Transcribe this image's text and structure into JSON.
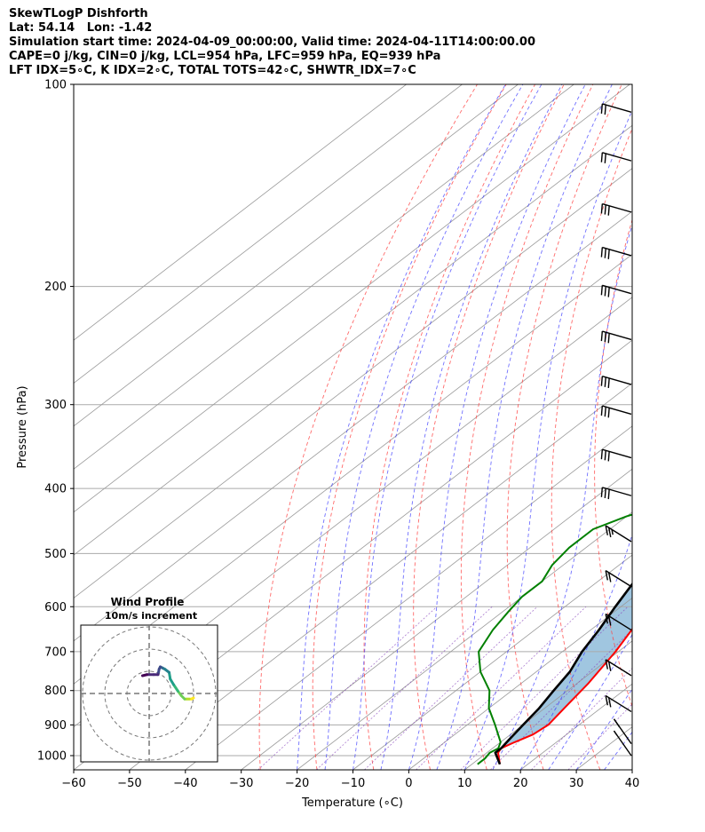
{
  "header": {
    "title_lines": [
      "SkewTLogP Dishforth",
      "Lat: 54.14   Lon: -1.42",
      "Simulation start time: 2024-04-09_00:00:00, Valid time: 2024-04-11T14:00:00.00",
      "CAPE=0 j/kg, CIN=0 j/kg, LCL=954 hPa, LFC=959 hPa, EQ=939 hPa",
      "LFT IDX=5∘C, K IDX=2∘C, TOTAL TOTS=42∘C, SHWTR_IDX=7∘C"
    ]
  },
  "chart_data": {
    "type": "line",
    "subtype": "skew-t log-p",
    "xlabel": "Temperature (∘C)",
    "ylabel": "Pressure (hPa)",
    "xlim": [
      -60,
      40
    ],
    "ylim": [
      1050,
      100
    ],
    "y_scale": "log",
    "grid": true,
    "x_ticks": [
      -60,
      -50,
      -40,
      -30,
      -20,
      -10,
      0,
      10,
      20,
      30,
      40
    ],
    "y_ticks": [
      100,
      200,
      300,
      400,
      500,
      600,
      700,
      800,
      900,
      1000
    ],
    "x_tick_labels": [
      "−60",
      "−50",
      "−40",
      "−30",
      "−20",
      "−10",
      "0",
      "10",
      "20",
      "30",
      "40"
    ],
    "y_tick_labels": [
      "100",
      "200",
      "300",
      "400",
      "500",
      "600",
      "700",
      "800",
      "900",
      "1000"
    ],
    "colors": {
      "temperature": "#ff0000",
      "dewpoint": "#008000",
      "parcel": "#000000",
      "shade": "#a0c6e0",
      "dry_adiabat": "#ff4444",
      "moist_adiabat": "#3333ff",
      "mixing_ratio": "#8844bb",
      "isotherm": "#999999"
    },
    "series": [
      {
        "key": "temperature",
        "points": [
          [
            15,
            1030
          ],
          [
            12,
            990
          ],
          [
            11.5,
            975
          ],
          [
            12.5,
            955
          ],
          [
            14,
            930
          ],
          [
            14.5,
            900
          ],
          [
            13.5,
            850
          ],
          [
            12,
            780
          ],
          [
            9.5,
            700
          ],
          [
            6,
            620
          ],
          [
            3,
            560
          ],
          [
            0.5,
            500
          ],
          [
            -1,
            460
          ],
          [
            -1.5,
            420
          ],
          [
            -2,
            400
          ],
          [
            -3,
            370
          ],
          [
            -5,
            340
          ],
          [
            -7.5,
            310
          ],
          [
            -10,
            285
          ],
          [
            -12.5,
            262
          ],
          [
            -15,
            247
          ],
          [
            -16.5,
            233
          ],
          [
            -17.5,
            220
          ],
          [
            -18.5,
            207
          ],
          [
            -19.5,
            197
          ],
          [
            -21,
            184
          ],
          [
            -22,
            173
          ],
          [
            -22,
            162
          ],
          [
            -22.5,
            152
          ],
          [
            -21,
            143
          ],
          [
            -19,
            134
          ],
          [
            -17.5,
            127
          ],
          [
            -18,
            121
          ],
          [
            -19,
            114
          ],
          [
            -20,
            109
          ],
          [
            -21,
            103
          ],
          [
            -21,
            100
          ]
        ]
      },
      {
        "key": "dewpoint",
        "points": [
          [
            11,
            1030
          ],
          [
            11,
            1010
          ],
          [
            10.5,
            990
          ],
          [
            11,
            975
          ],
          [
            10,
            955
          ],
          [
            5,
            900
          ],
          [
            0,
            850
          ],
          [
            -4,
            800
          ],
          [
            -10,
            750
          ],
          [
            -15,
            700
          ],
          [
            -17.5,
            650
          ],
          [
            -19,
            610
          ],
          [
            -20,
            580
          ],
          [
            -20,
            550
          ],
          [
            -22,
            520
          ],
          [
            -23,
            490
          ],
          [
            -23,
            460
          ],
          [
            -20,
            440
          ],
          [
            -15,
            420
          ],
          [
            -11,
            400
          ],
          [
            -12,
            380
          ],
          [
            -16,
            360
          ],
          [
            -23,
            340
          ],
          [
            -23,
            320
          ],
          [
            -22,
            300
          ],
          [
            -22,
            280
          ],
          [
            -23,
            260
          ],
          [
            -26,
            245
          ],
          [
            -27,
            230
          ],
          [
            -27,
            215
          ],
          [
            -27.5,
            200
          ],
          [
            -27.5,
            188
          ],
          [
            -28,
            178
          ],
          [
            -31,
            168
          ],
          [
            -35,
            160
          ],
          [
            -37,
            152
          ],
          [
            -37,
            145
          ],
          [
            -35,
            138
          ],
          [
            -33,
            131
          ],
          [
            -30,
            124
          ],
          [
            -27,
            116
          ],
          [
            -24,
            108
          ],
          [
            -21,
            100
          ]
        ]
      },
      {
        "key": "parcel",
        "points": [
          [
            15,
            1030
          ],
          [
            11.5,
            990
          ],
          [
            11.5,
            975
          ],
          [
            11,
            950
          ],
          [
            10,
            900
          ],
          [
            9,
            850
          ],
          [
            7.5,
            800
          ],
          [
            6,
            750
          ],
          [
            3.5,
            700
          ],
          [
            1.5,
            650
          ],
          [
            -1,
            600
          ],
          [
            -3.5,
            550
          ],
          [
            -6.5,
            500
          ],
          [
            -10,
            450
          ],
          [
            -14,
            400
          ],
          [
            -18.5,
            350
          ],
          [
            -24,
            300
          ],
          [
            -30.5,
            250
          ],
          [
            -38,
            200
          ],
          [
            -47,
            150
          ],
          [
            -55,
            115
          ],
          [
            -59,
            100
          ]
        ]
      }
    ],
    "wind_barbs": [
      {
        "pressure": 110,
        "speed_kt": 100
      },
      {
        "pressure": 130,
        "speed_kt": 100
      },
      {
        "pressure": 155,
        "speed_kt": 150
      },
      {
        "pressure": 180,
        "speed_kt": 150
      },
      {
        "pressure": 205,
        "speed_kt": 150
      },
      {
        "pressure": 240,
        "speed_kt": 150
      },
      {
        "pressure": 280,
        "speed_kt": 150
      },
      {
        "pressure": 310,
        "speed_kt": 150
      },
      {
        "pressure": 360,
        "speed_kt": 150
      },
      {
        "pressure": 410,
        "speed_kt": 150
      },
      {
        "pressure": 480,
        "speed_kt": 25
      },
      {
        "pressure": 560,
        "speed_kt": 20
      },
      {
        "pressure": 650,
        "speed_kt": 20
      },
      {
        "pressure": 760,
        "speed_kt": 20
      },
      {
        "pressure": 860,
        "speed_kt": 20
      },
      {
        "pressure": 960,
        "speed_kt": 10
      },
      {
        "pressure": 1000,
        "speed_kt": 5
      }
    ],
    "hodograph": {
      "title": "Wind Profile",
      "subtitle": "10m/s increment",
      "ring_step_ms": 10,
      "points_uv": [
        [
          20,
          -2
        ],
        [
          19,
          -2.5
        ],
        [
          18,
          -2.5
        ],
        [
          17,
          -2.5
        ],
        [
          16,
          -2.5
        ],
        [
          14.5,
          -1
        ],
        [
          13,
          1
        ],
        [
          11,
          4
        ],
        [
          9.5,
          6.5
        ],
        [
          9,
          9.5
        ],
        [
          7,
          11
        ],
        [
          6,
          11.5
        ],
        [
          5,
          12
        ],
        [
          4.5,
          11
        ],
        [
          4,
          8.5
        ],
        [
          2,
          8.5
        ],
        [
          -1,
          8.5
        ],
        [
          -3,
          8
        ]
      ]
    }
  }
}
